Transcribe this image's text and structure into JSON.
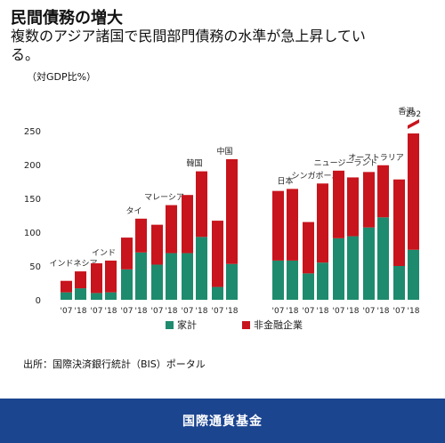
{
  "header": {
    "title": "民間債務の増大",
    "subtitle": "複数のアジア諸国で民間部門債務の水準が急上昇している。",
    "unit": "（対GDP比%）"
  },
  "source": "出所：国際決済銀行統計（BIS）ポータル",
  "footer": "国際通貨基金",
  "colors": {
    "household": "#1e8b6e",
    "corporate": "#c8141c"
  },
  "chart_data": {
    "type": "bar",
    "stacked": true,
    "ylim": [
      0,
      250
    ],
    "yticks": [
      0,
      50,
      100,
      150,
      200,
      250
    ],
    "grid": false,
    "legend_position": "bottom",
    "years": [
      "'07",
      "'18"
    ],
    "series": [
      {
        "name": "家計",
        "key": "household"
      },
      {
        "name": "非金融企業",
        "key": "corporate"
      }
    ],
    "groups": [
      {
        "name": "インドネシア",
        "values": [
          {
            "household": 11,
            "corporate": 17
          },
          {
            "household": 17,
            "corporate": 25
          }
        ]
      },
      {
        "name": "インド",
        "values": [
          {
            "household": 10,
            "corporate": 44
          },
          {
            "household": 11,
            "corporate": 47
          }
        ]
      },
      {
        "name": "タイ",
        "values": [
          {
            "household": 45,
            "corporate": 47
          },
          {
            "household": 70,
            "corporate": 50
          }
        ]
      },
      {
        "name": "マレーシア",
        "values": [
          {
            "household": 52,
            "corporate": 59
          },
          {
            "household": 69,
            "corporate": 71
          }
        ]
      },
      {
        "name": "韓国",
        "values": [
          {
            "household": 69,
            "corporate": 86
          },
          {
            "household": 93,
            "corporate": 97
          }
        ]
      },
      {
        "name": "中国",
        "values": [
          {
            "household": 19,
            "corporate": 98
          },
          {
            "household": 53,
            "corporate": 155
          }
        ]
      },
      {
        "name": "日本",
        "values": [
          {
            "household": 58,
            "corporate": 103
          },
          {
            "household": 58,
            "corporate": 106
          }
        ]
      },
      {
        "name": "シンガポール",
        "values": [
          {
            "household": 39,
            "corporate": 76
          },
          {
            "household": 55,
            "corporate": 117
          }
        ]
      },
      {
        "name": "ニュージーランド",
        "values": [
          {
            "household": 91,
            "corporate": 100
          },
          {
            "household": 94,
            "corporate": 87
          }
        ]
      },
      {
        "name": "オーストラリア",
        "values": [
          {
            "household": 107,
            "corporate": 82
          },
          {
            "household": 122,
            "corporate": 77
          }
        ]
      },
      {
        "name": "香港",
        "values": [
          {
            "household": 50,
            "corporate": 128
          },
          {
            "household": 74,
            "corporate": 218
          }
        ]
      }
    ],
    "annotations": [
      {
        "group": "香港",
        "year": "'18",
        "label": "292"
      }
    ]
  }
}
